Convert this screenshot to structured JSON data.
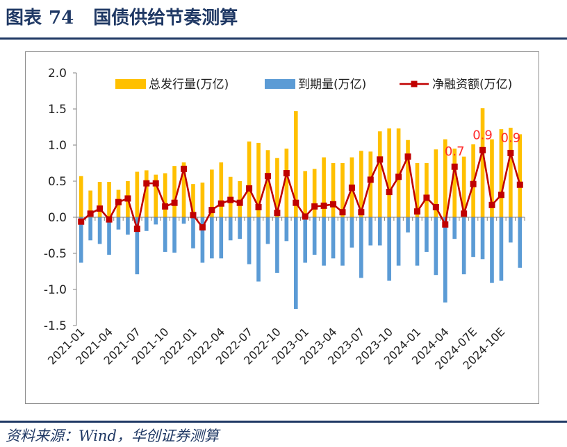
{
  "figure": {
    "label": "图表",
    "number": "74",
    "title": "国债供给节奏测算",
    "source": "资料来源：Wind，华创证券测算"
  },
  "chart_data": {
    "type": "bar",
    "categories": [
      "2021-01",
      "2021-02",
      "2021-03",
      "2021-04",
      "2021-05",
      "2021-06",
      "2021-07",
      "2021-08",
      "2021-09",
      "2021-10",
      "2021-11",
      "2021-12",
      "2022-01",
      "2022-02",
      "2022-03",
      "2022-04",
      "2022-05",
      "2022-06",
      "2022-07",
      "2022-08",
      "2022-09",
      "2022-10",
      "2022-11",
      "2022-12",
      "2023-01",
      "2023-02",
      "2023-03",
      "2023-04",
      "2023-05",
      "2023-06",
      "2023-07",
      "2023-08",
      "2023-09",
      "2023-10",
      "2023-11",
      "2023-12",
      "2024-01",
      "2024-02",
      "2024-03",
      "2024-04",
      "2024-05",
      "2024-06",
      "2024-07E",
      "2024-08E",
      "2024-09E",
      "2024-10E",
      "2024-11E",
      "2024-12E"
    ],
    "x_tick_labels": [
      "2021-01",
      "2021-04",
      "2021-07",
      "2021-10",
      "2022-01",
      "2022-04",
      "2022-07",
      "2022-10",
      "2023-01",
      "2023-04",
      "2023-07",
      "2023-10",
      "2024-01",
      "2024-04",
      "2024-07E",
      "2024-10E"
    ],
    "x_tick_every": 3,
    "ylim": [
      -1.5,
      2.0
    ],
    "yticks": [
      2.0,
      1.5,
      1.0,
      0.5,
      0.0,
      -0.5,
      -1.0,
      -1.5
    ],
    "grid": false,
    "legend_position": "top",
    "series": [
      {
        "name": "总发行量(万亿)",
        "kind": "bar",
        "color": "#ffc000",
        "values": [
          0.57,
          0.37,
          0.49,
          0.49,
          0.38,
          0.5,
          0.63,
          0.65,
          0.59,
          0.61,
          0.71,
          0.76,
          0.46,
          0.48,
          0.66,
          0.76,
          0.56,
          0.5,
          1.05,
          1.03,
          0.93,
          0.82,
          0.95,
          1.47,
          0.64,
          0.67,
          0.83,
          0.75,
          0.75,
          0.83,
          0.92,
          0.91,
          1.19,
          1.23,
          1.23,
          1.07,
          0.75,
          0.75,
          0.94,
          1.08,
          0.95,
          0.84,
          1.01,
          1.51,
          1.08,
          1.22,
          1.24,
          1.15
        ]
      },
      {
        "name": "到期量(万亿)",
        "kind": "bar",
        "color": "#5b9bd5",
        "values": [
          -0.63,
          -0.32,
          -0.37,
          -0.52,
          -0.17,
          -0.24,
          -0.79,
          -0.19,
          -0.1,
          -0.48,
          -0.49,
          -0.09,
          -0.43,
          -0.63,
          -0.57,
          -0.57,
          -0.32,
          -0.3,
          -0.65,
          -0.89,
          -0.37,
          -0.77,
          -0.33,
          -1.27,
          -0.63,
          -0.52,
          -0.67,
          -0.57,
          -0.67,
          -0.42,
          -0.84,
          -0.39,
          -0.39,
          -0.88,
          -0.67,
          -0.21,
          -0.67,
          -0.48,
          -0.8,
          -1.18,
          -0.3,
          -0.79,
          -0.55,
          -0.58,
          -0.91,
          -0.88,
          -0.35,
          -0.7
        ]
      },
      {
        "name": "净融资额(万亿)",
        "kind": "line",
        "color": "#c00000",
        "values": [
          -0.06,
          0.05,
          0.12,
          -0.03,
          0.21,
          0.26,
          -0.16,
          0.47,
          0.47,
          0.15,
          0.2,
          0.67,
          0.03,
          -0.14,
          0.1,
          0.19,
          0.24,
          0.2,
          0.4,
          0.14,
          0.57,
          0.06,
          0.61,
          0.2,
          0.01,
          0.15,
          0.16,
          0.18,
          0.07,
          0.41,
          0.07,
          0.52,
          0.8,
          0.35,
          0.56,
          0.84,
          0.08,
          0.27,
          0.14,
          -0.1,
          0.7,
          0.05,
          0.46,
          0.93,
          0.17,
          0.31,
          0.89,
          0.45
        ]
      }
    ],
    "annotations": [
      {
        "index": 40,
        "text": "0.7"
      },
      {
        "index": 43,
        "text": "0.9"
      },
      {
        "index": 46,
        "text": "0.9"
      }
    ]
  }
}
